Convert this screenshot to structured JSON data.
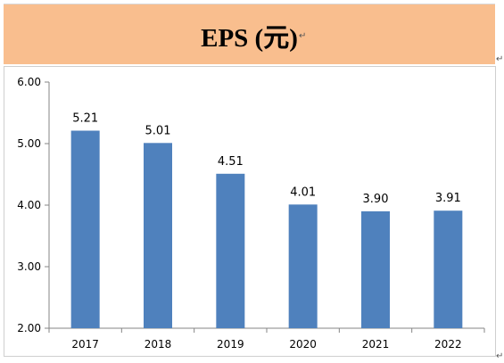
{
  "page": {
    "title": "EPS (元)",
    "title_bg": "#f9be8e",
    "para_mark": "↵"
  },
  "chart_data": {
    "type": "bar",
    "title": "",
    "xlabel": "",
    "ylabel": "",
    "categories": [
      "2017",
      "2018",
      "2019",
      "2020",
      "2021",
      "2022"
    ],
    "values": [
      5.21,
      5.01,
      4.51,
      4.01,
      3.9,
      3.91
    ],
    "value_labels": [
      "5.21",
      "5.01",
      "4.51",
      "4.01",
      "3.90",
      "3.91"
    ],
    "ylim": [
      2.0,
      6.0
    ],
    "yticks": [
      "2.00",
      "3.00",
      "4.00",
      "5.00",
      "6.00"
    ],
    "bar_color": "#4f81bd",
    "grid": false,
    "legend": "none"
  }
}
